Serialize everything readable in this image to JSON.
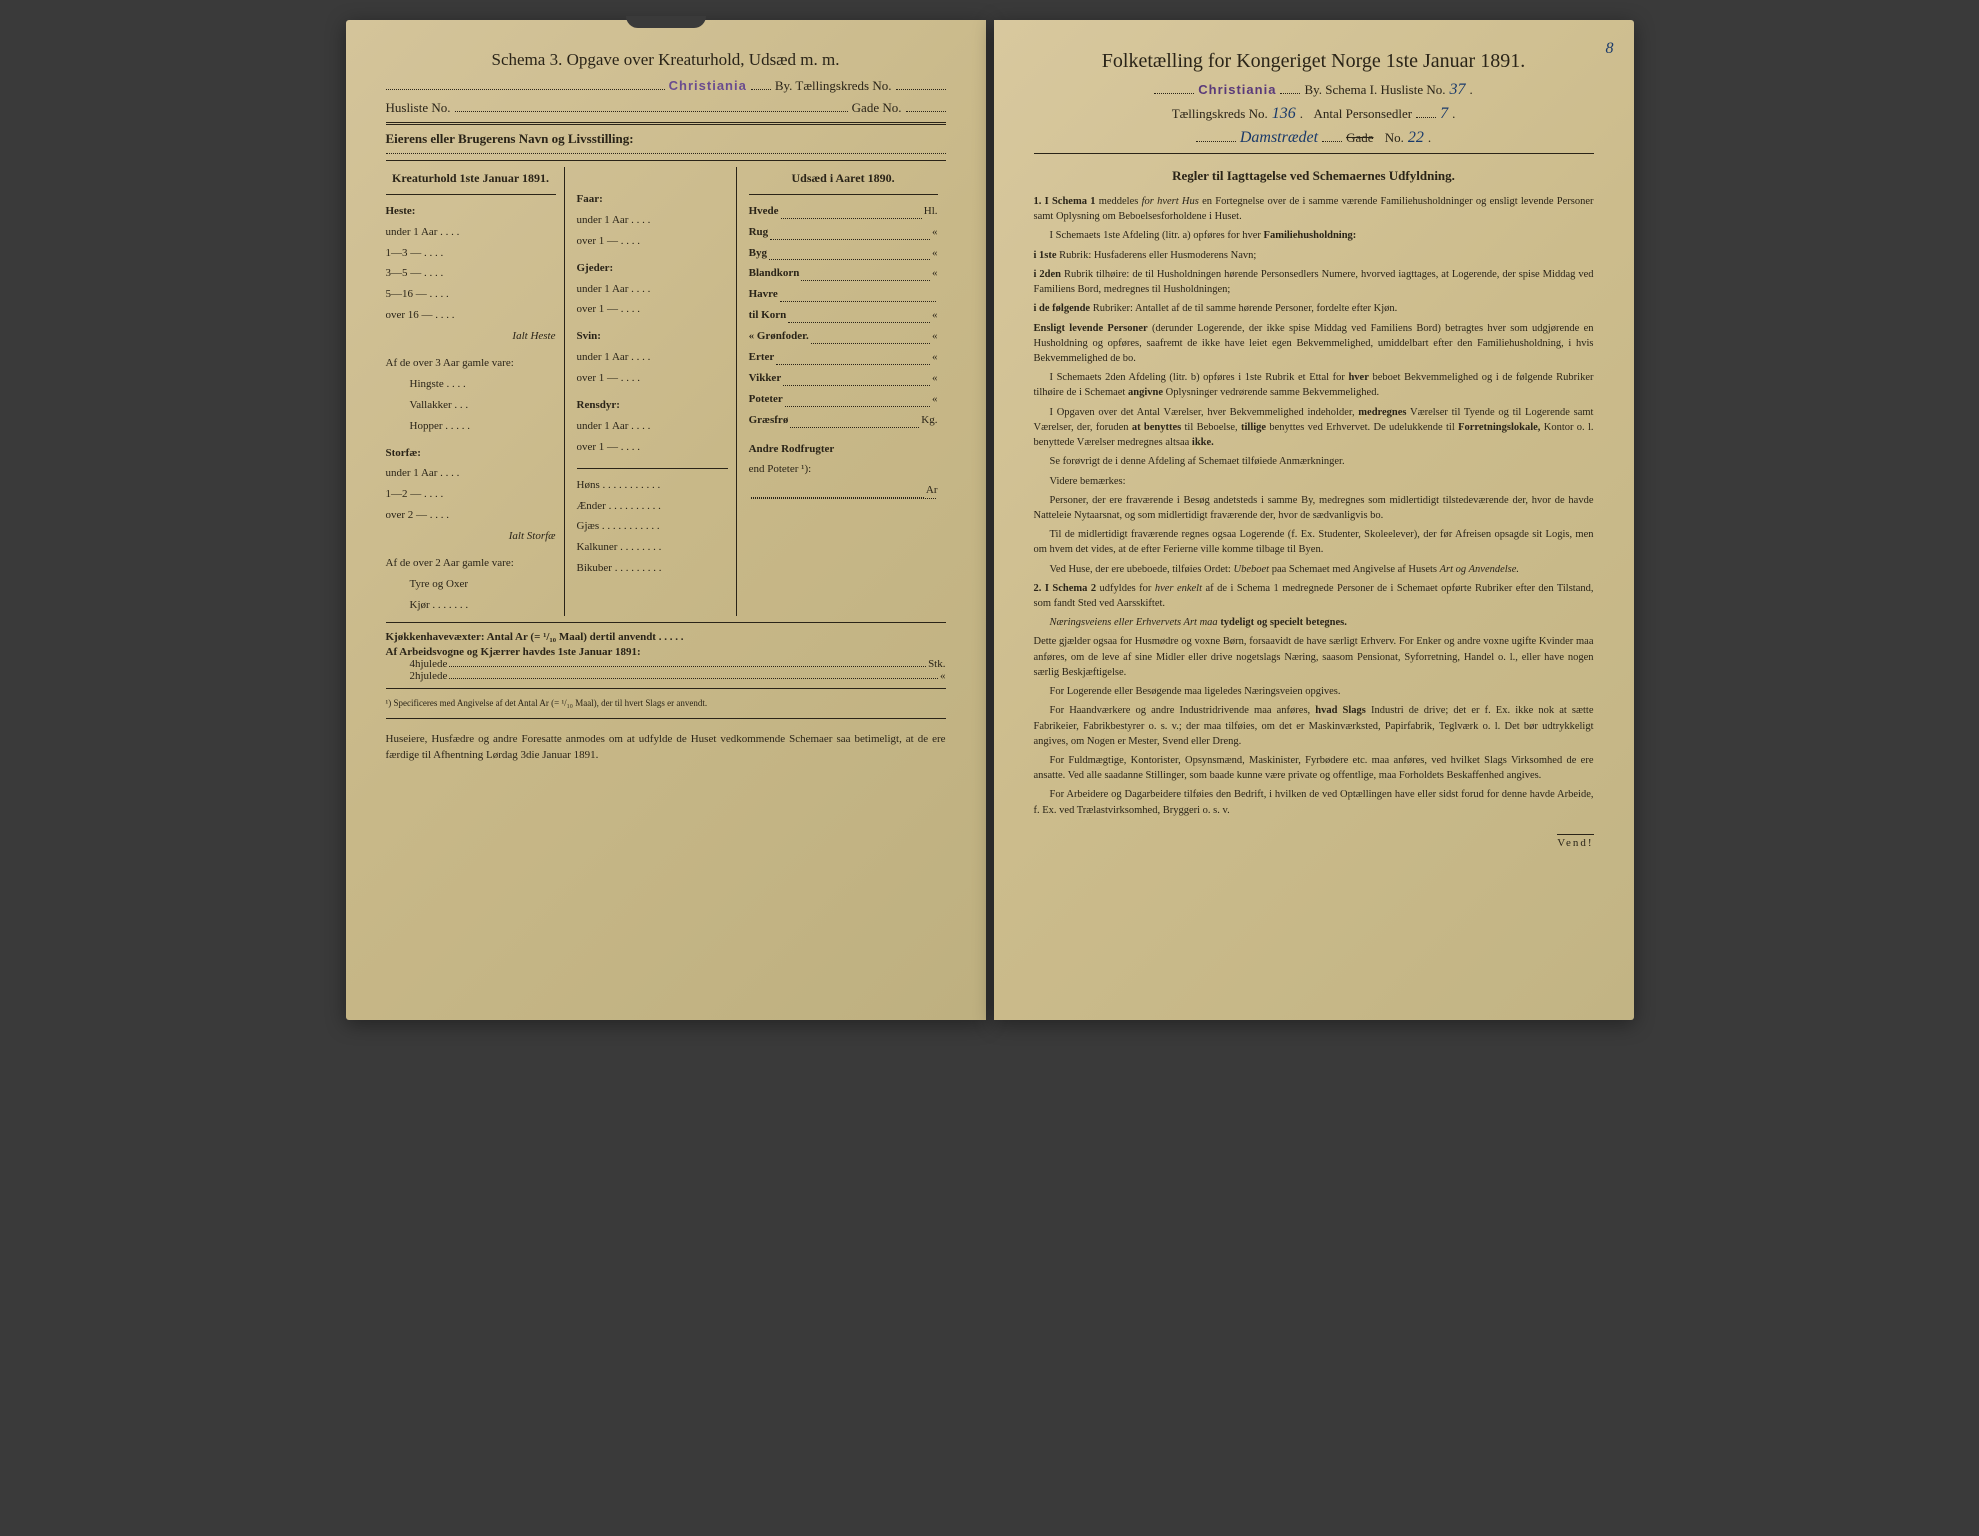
{
  "left": {
    "schemaTitle": "Schema 3.  Opgave over Kreaturhold, Udsæd m. m.",
    "stamp": "Christiania",
    "byLabel": "By.  Tællingskreds No.",
    "huslisteLabel": "Husliste No.",
    "gadeLabel": "Gade No.",
    "ownerLabel": "Eierens eller Brugerens Navn og Livsstilling:",
    "col1Header": "Kreaturhold 1ste Januar 1891.",
    "col2Header": "Udsæd i Aaret 1890.",
    "heste": "Heste:",
    "hesteItems": [
      "under 1 Aar . . . .",
      "1—3   —   . . . .",
      "3—5   —   . . . .",
      "5—16  —   . . . .",
      "over 16 —  . . . ."
    ],
    "ialtHeste": "Ialt Heste",
    "af3aar": "Af de over 3 Aar gamle vare:",
    "af3items": [
      "Hingste . . . .",
      "Vallakker . . .",
      "Hopper . . . . ."
    ],
    "storfae": "Storfæ:",
    "storfaeItems": [
      "under 1 Aar . . . .",
      "1—2   —   . . . .",
      "over 2   —   . . . ."
    ],
    "ialtStorfae": "Ialt Storfæ",
    "af2aar": "Af de over 2 Aar gamle vare:",
    "af2items": [
      "Tyre og Oxer",
      "Kjør . . . . . . ."
    ],
    "faar": "Faar:",
    "faarItems": [
      "under 1 Aar . . . .",
      "over 1   —   . . . ."
    ],
    "gjeder": "Gjeder:",
    "gjederItems": [
      "under 1 Aar . . . .",
      "over 1   —   . . . ."
    ],
    "svin": "Svin:",
    "svinItems": [
      "under 1 Aar . . . .",
      "over 1   —   . . . ."
    ],
    "rensdyr": "Rensdyr:",
    "rensdyrItems": [
      "under 1 Aar . . . .",
      "over 1   —   . . . ."
    ],
    "poultry": [
      "Høns . . . . . . . . . . .",
      "Ænder . . . . . . . . . .",
      "Gjæs . . . . . . . . . . .",
      "Kalkuner . . . . . . . .",
      "Bikuber . . . . . . . . ."
    ],
    "crops": [
      {
        "l": "Hvede",
        "u": "Hl."
      },
      {
        "l": "Rug",
        "u": "«"
      },
      {
        "l": "Byg",
        "u": "«"
      },
      {
        "l": "Blandkorn",
        "u": "«"
      },
      {
        "l": "Havre",
        "u": ""
      },
      {
        "l": "  til Korn",
        "u": "«"
      },
      {
        "l": "  « Grønfoder.",
        "u": "«"
      },
      {
        "l": "Erter",
        "u": "«"
      },
      {
        "l": "Vikker",
        "u": "«"
      },
      {
        "l": "Poteter",
        "u": "«"
      },
      {
        "l": "Græsfrø",
        "u": "Kg."
      }
    ],
    "andreRod": "Andre Rodfrugter",
    "endPoteter": "end Poteter ¹):",
    "arLine": "Ar",
    "kjokken": "Kjøkkenhavevæxter:  Antal Ar (= ¹/₁₀ Maal) dertil anvendt . . . . .",
    "arbeid": "Af Arbeidsvogne og Kjærrer havdes 1ste Januar 1891:",
    "hjul4": "4hjulede",
    "hjul2": "2hjulede",
    "stk": "Stk.",
    "footnote": "¹) Specificeres med Angivelse af det Antal Ar (= ¹/₁₀ Maal), der til hvert Slags er anvendt.",
    "closing": "Huseiere, Husfædre og andre Foresatte anmodes om at udfylde de Huset vedkommende Schemaer saa betimeligt, at de ere færdige til Afhentning Lørdag 3die Januar 1891."
  },
  "right": {
    "mainTitle": "Folketælling for Kongeriget Norge 1ste Januar 1891.",
    "corner": "8",
    "stamp": "Christiania",
    "byLabel": "By.  Schema I.  Husliste No.",
    "huslisteNo": "37",
    "tkLabel": "Tællingskreds No.",
    "tkNo": "136",
    "antalLabel": "Antal Personsedler",
    "antalNo": "7",
    "gadeName": "Damstrædet",
    "gadeLabel": "Gade",
    "gadeStrike": true,
    "noLabel": "No.",
    "gadeNo": "22",
    "rulesHeader": "Regler til Iagttagelse ved Schemaernes Udfyldning.",
    "r1a": "1. I Schema 1",
    "r1b": " meddeles ",
    "r1c": "for hvert Hus",
    "r1d": " en Fortegnelse over de i samme værende Familiehusholdninger og ensligt levende Personer samt Oplysning om Beboelsesforholdene i Huset.",
    "r2": "I Schemaets 1ste Afdeling (litr. a) opføres for hver ",
    "r2b": "Familiehusholdning:",
    "r3a": "i 1ste",
    "r3b": " Rubrik: Husfaderens eller Husmoderens Navn;",
    "r4a": "i 2den",
    "r4b": " Rubrik tilhøire: de til Husholdningen hørende Personsedlers Numere, hvorved iagttages, at Logerende, der spise Middag ved Familiens Bord, medregnes til Husholdningen;",
    "r5a": "i de følgende",
    "r5b": " Rubriker: Antallet af de til samme hørende Personer, fordelte efter Kjøn.",
    "r6a": "Ensligt",
    "r6b": " levende Personer",
    "r6c": " (derunder Logerende, der ikke spise Middag ved Familiens Bord) betragtes hver som udgjørende en Husholdning og opføres, saafremt de ikke have leiet egen Bekvemmelighed, umiddelbart efter den Familiehusholdning, i hvis Bekvemmelighed de bo.",
    "r7": "I Schemaets 2den Afdeling (litr. b) opføres i 1ste Rubrik et Ettal for ",
    "r7b": "hver",
    "r7c": " beboet Bekvemmelighed og i de følgende Rubriker tilhøire de i Schemaet ",
    "r7d": "angivne",
    "r7e": " Oplysninger vedrørende samme Bekvemmelighed.",
    "r8": "I Opgaven over det Antal Værelser, hver Bekvemmelighed indeholder, ",
    "r8b": "medregnes",
    "r8c": " Værelser til Tyende og til Logerende samt Værelser, der, foruden ",
    "r8d": "at benyttes",
    "r8e": " til Beboelse, ",
    "r8f": "tillige",
    "r8g": " benyttes ved Erhvervet.  De udelukkende til ",
    "r8h": "Forretningslokale,",
    "r8i": " Kontor o. l. benyttede Værelser medregnes altsaa ",
    "r8j": "ikke.",
    "r9": "Se forøvrigt de i denne Afdeling af Schemaet tilføiede Anmærkninger.",
    "r10": "Videre bemærkes:",
    "r11": "Personer, der ere fraværende i Besøg andetsteds i samme By, medregnes som midlertidigt tilstedeværende der, hvor de havde Natteleie Nytaarsnat, og som midlertidigt fraværende der, hvor de sædvanligvis bo.",
    "r12": "Til de midlertidigt fraværende regnes ogsaa Logerende (f. Ex. Studenter, Skoleelever), der før Afreisen opsagde sit Logis, men om hvem det vides, at de efter Ferierne ville komme tilbage til Byen.",
    "r13a": "Ved Huse, der ere ubeboede, tilføies Ordet: ",
    "r13b": "Ubeboet",
    "r13c": " paa Schemaet med Angivelse af Husets ",
    "r13d": "Art og Anvendelse.",
    "r14a": "2. I Schema 2",
    "r14b": " udfyldes for ",
    "r14c": "hver enkelt",
    "r14d": " af de i Schema 1 medregnede Personer de i Schemaet opførte Rubriker efter den Tilstand, som fandt Sted ved Aarsskiftet.",
    "r15a": "Næringsveiens eller Erhvervets Art maa ",
    "r15b": "tydeligt og specielt betegnes.",
    "r16": "Dette gjælder ogsaa for Husmødre og voxne Børn, forsaavidt de have særligt Erhverv.  For Enker og andre voxne ugifte Kvinder maa anføres, om de leve af sine Midler eller drive nogetslags Næring, saasom Pensionat, Syforretning, Handel o. l., eller have nogen særlig Beskjæftigelse.",
    "r17": "For Logerende eller Besøgende maa ligeledes Næringsveien opgives.",
    "r18a": "For Haandværkere og andre Industridrivende maa anføres, ",
    "r18b": "hvad Slags",
    "r18c": " Industri de drive; det er f. Ex. ikke nok at sætte Fabrikeier, Fabrikbestyrer o. s. v.; der maa tilføies, om det er Maskinværksted, Papirfabrik, Teglværk o. l.  Det bør udtrykkeligt angives, om Nogen er Mester, Svend eller Dreng.",
    "r19": "For Fuldmægtige, Kontorister, Opsynsmænd, Maskinister, Fyrbødere etc. maa anføres, ved hvilket Slags Virksomhed de ere ansatte.  Ved alle saadanne Stillinger, som baade kunne være private og offentlige, maa Forholdets Beskaffenhed angives.",
    "r20": "For Arbeidere og Dagarbeidere tilføies den Bedrift, i hvilken de ved Optællingen have eller sidst forud for denne havde Arbeide, f. Ex. ved Trælastvirksomhed, Bryggeri o. s. v.",
    "vend": "Vend!"
  }
}
